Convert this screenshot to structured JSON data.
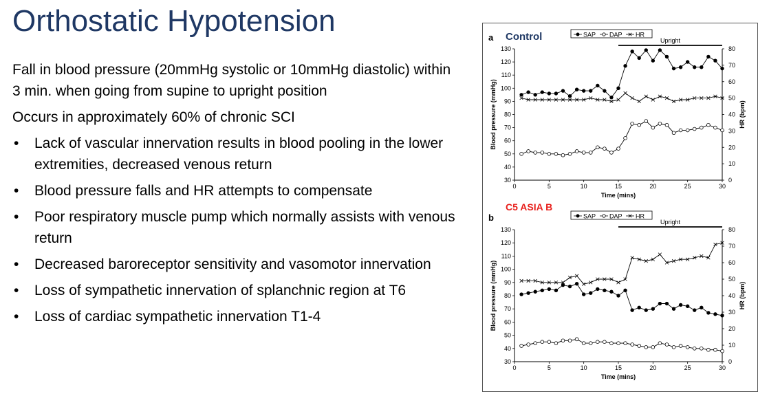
{
  "slide": {
    "title": "Orthostatic Hypotension",
    "intro": [
      "Fall in blood pressure (20mmHg systolic or 10mmHg diastolic) within 3 min. when going from supine to upright position",
      "Occurs in approximately 60% of chronic SCI"
    ],
    "bullets": [
      "Lack of vascular innervation results in blood pooling in the lower extremities, decreased venous return",
      "Blood pressure falls and HR attempts to compensate",
      "Poor respiratory muscle pump which normally assists with  venous return",
      "Decreased baroreceptor sensitivity and vasomotor innervation",
      "Loss of sympathetic innervation of splanchnic region at T6",
      "Loss of cardiac sympathetic innervation T1-4"
    ]
  },
  "colors": {
    "title": "#1f3864",
    "panel_b_label": "#e8201c",
    "panel_a_label": "#1f3864"
  },
  "chart_data": [
    {
      "type": "line",
      "panel": "a",
      "label": "Control",
      "legend": [
        "SAP",
        "DAP",
        "HR"
      ],
      "upright_label": "Upright",
      "upright_range": [
        15,
        30
      ],
      "xlabel": "Time (mins)",
      "ylabel": "Blood pressure (mmHg)",
      "y2label": "HR (bpm)",
      "xlim": [
        0,
        30
      ],
      "ylim": [
        30,
        130
      ],
      "y2lim": [
        0,
        80
      ],
      "xticks": [
        0,
        5,
        10,
        15,
        20,
        25,
        30
      ],
      "yticks": [
        30,
        40,
        50,
        60,
        70,
        80,
        90,
        100,
        110,
        120,
        130
      ],
      "y2ticks": [
        0,
        10,
        20,
        30,
        40,
        50,
        60,
        70,
        80
      ],
      "x": [
        1,
        2,
        3,
        4,
        5,
        6,
        7,
        8,
        9,
        10,
        11,
        12,
        13,
        14,
        15,
        16,
        17,
        18,
        19,
        20,
        21,
        22,
        23,
        24,
        25,
        26,
        27,
        28,
        29,
        30
      ],
      "series": [
        {
          "name": "SAP",
          "axis": "left",
          "marker": "filled",
          "values": [
            95,
            97,
            95,
            97,
            96,
            96,
            98,
            94,
            99,
            98,
            98,
            102,
            98,
            93,
            100,
            117,
            128,
            123,
            129,
            121,
            129,
            124,
            115,
            116,
            120,
            116,
            116,
            124,
            121,
            115
          ]
        },
        {
          "name": "DAP",
          "axis": "left",
          "marker": "open",
          "values": [
            50,
            52,
            51,
            51,
            50,
            50,
            49,
            50,
            52,
            51,
            51,
            55,
            54,
            51,
            54,
            62,
            73,
            72,
            75,
            70,
            73,
            72,
            66,
            68,
            68,
            69,
            70,
            72,
            70,
            68
          ]
        },
        {
          "name": "HR",
          "axis": "right",
          "marker": "x",
          "values": [
            50,
            49,
            49,
            49,
            49,
            49,
            49,
            49,
            49,
            49,
            50,
            49,
            49,
            48,
            49,
            53,
            50,
            48,
            51,
            49,
            51,
            50,
            48,
            49,
            49,
            50,
            50,
            50,
            51,
            50
          ]
        }
      ]
    },
    {
      "type": "line",
      "panel": "b",
      "label": "C5 ASIA B",
      "legend": [
        "SAP",
        "DAP",
        "HR"
      ],
      "upright_label": "Upright",
      "upright_range": [
        15,
        30
      ],
      "xlabel": "Time (mins)",
      "ylabel": "Blood pressure (mmHg)",
      "y2label": "HR (bpm)",
      "xlim": [
        0,
        30
      ],
      "ylim": [
        30,
        130
      ],
      "y2lim": [
        0,
        80
      ],
      "xticks": [
        0,
        5,
        10,
        15,
        20,
        25,
        30
      ],
      "yticks": [
        30,
        40,
        50,
        60,
        70,
        80,
        90,
        100,
        110,
        120,
        130
      ],
      "y2ticks": [
        0,
        10,
        20,
        30,
        40,
        50,
        60,
        70,
        80
      ],
      "x": [
        1,
        2,
        3,
        4,
        5,
        6,
        7,
        8,
        9,
        10,
        11,
        12,
        13,
        14,
        15,
        16,
        17,
        18,
        19,
        20,
        21,
        22,
        23,
        24,
        25,
        26,
        27,
        28,
        29,
        30
      ],
      "series": [
        {
          "name": "SAP",
          "axis": "left",
          "marker": "filled",
          "values": [
            81,
            82,
            83,
            84,
            85,
            84,
            88,
            87,
            89,
            81,
            82,
            85,
            84,
            83,
            80,
            84,
            69,
            71,
            69,
            70,
            74,
            74,
            70,
            73,
            72,
            69,
            71,
            67,
            66,
            65
          ]
        },
        {
          "name": "DAP",
          "axis": "left",
          "marker": "open",
          "values": [
            42,
            43,
            44,
            45,
            45,
            44,
            46,
            46,
            47,
            44,
            44,
            45,
            45,
            44,
            44,
            44,
            43,
            42,
            41,
            41,
            44,
            43,
            41,
            42,
            41,
            40,
            40,
            39,
            39,
            38
          ]
        },
        {
          "name": "HR",
          "axis": "right",
          "marker": "x",
          "values": [
            49,
            49,
            49,
            48,
            48,
            48,
            48,
            51,
            52,
            47,
            48,
            50,
            50,
            50,
            48,
            50,
            63,
            62,
            61,
            62,
            65,
            60,
            61,
            62,
            62,
            63,
            64,
            63,
            71,
            72
          ]
        }
      ]
    }
  ]
}
